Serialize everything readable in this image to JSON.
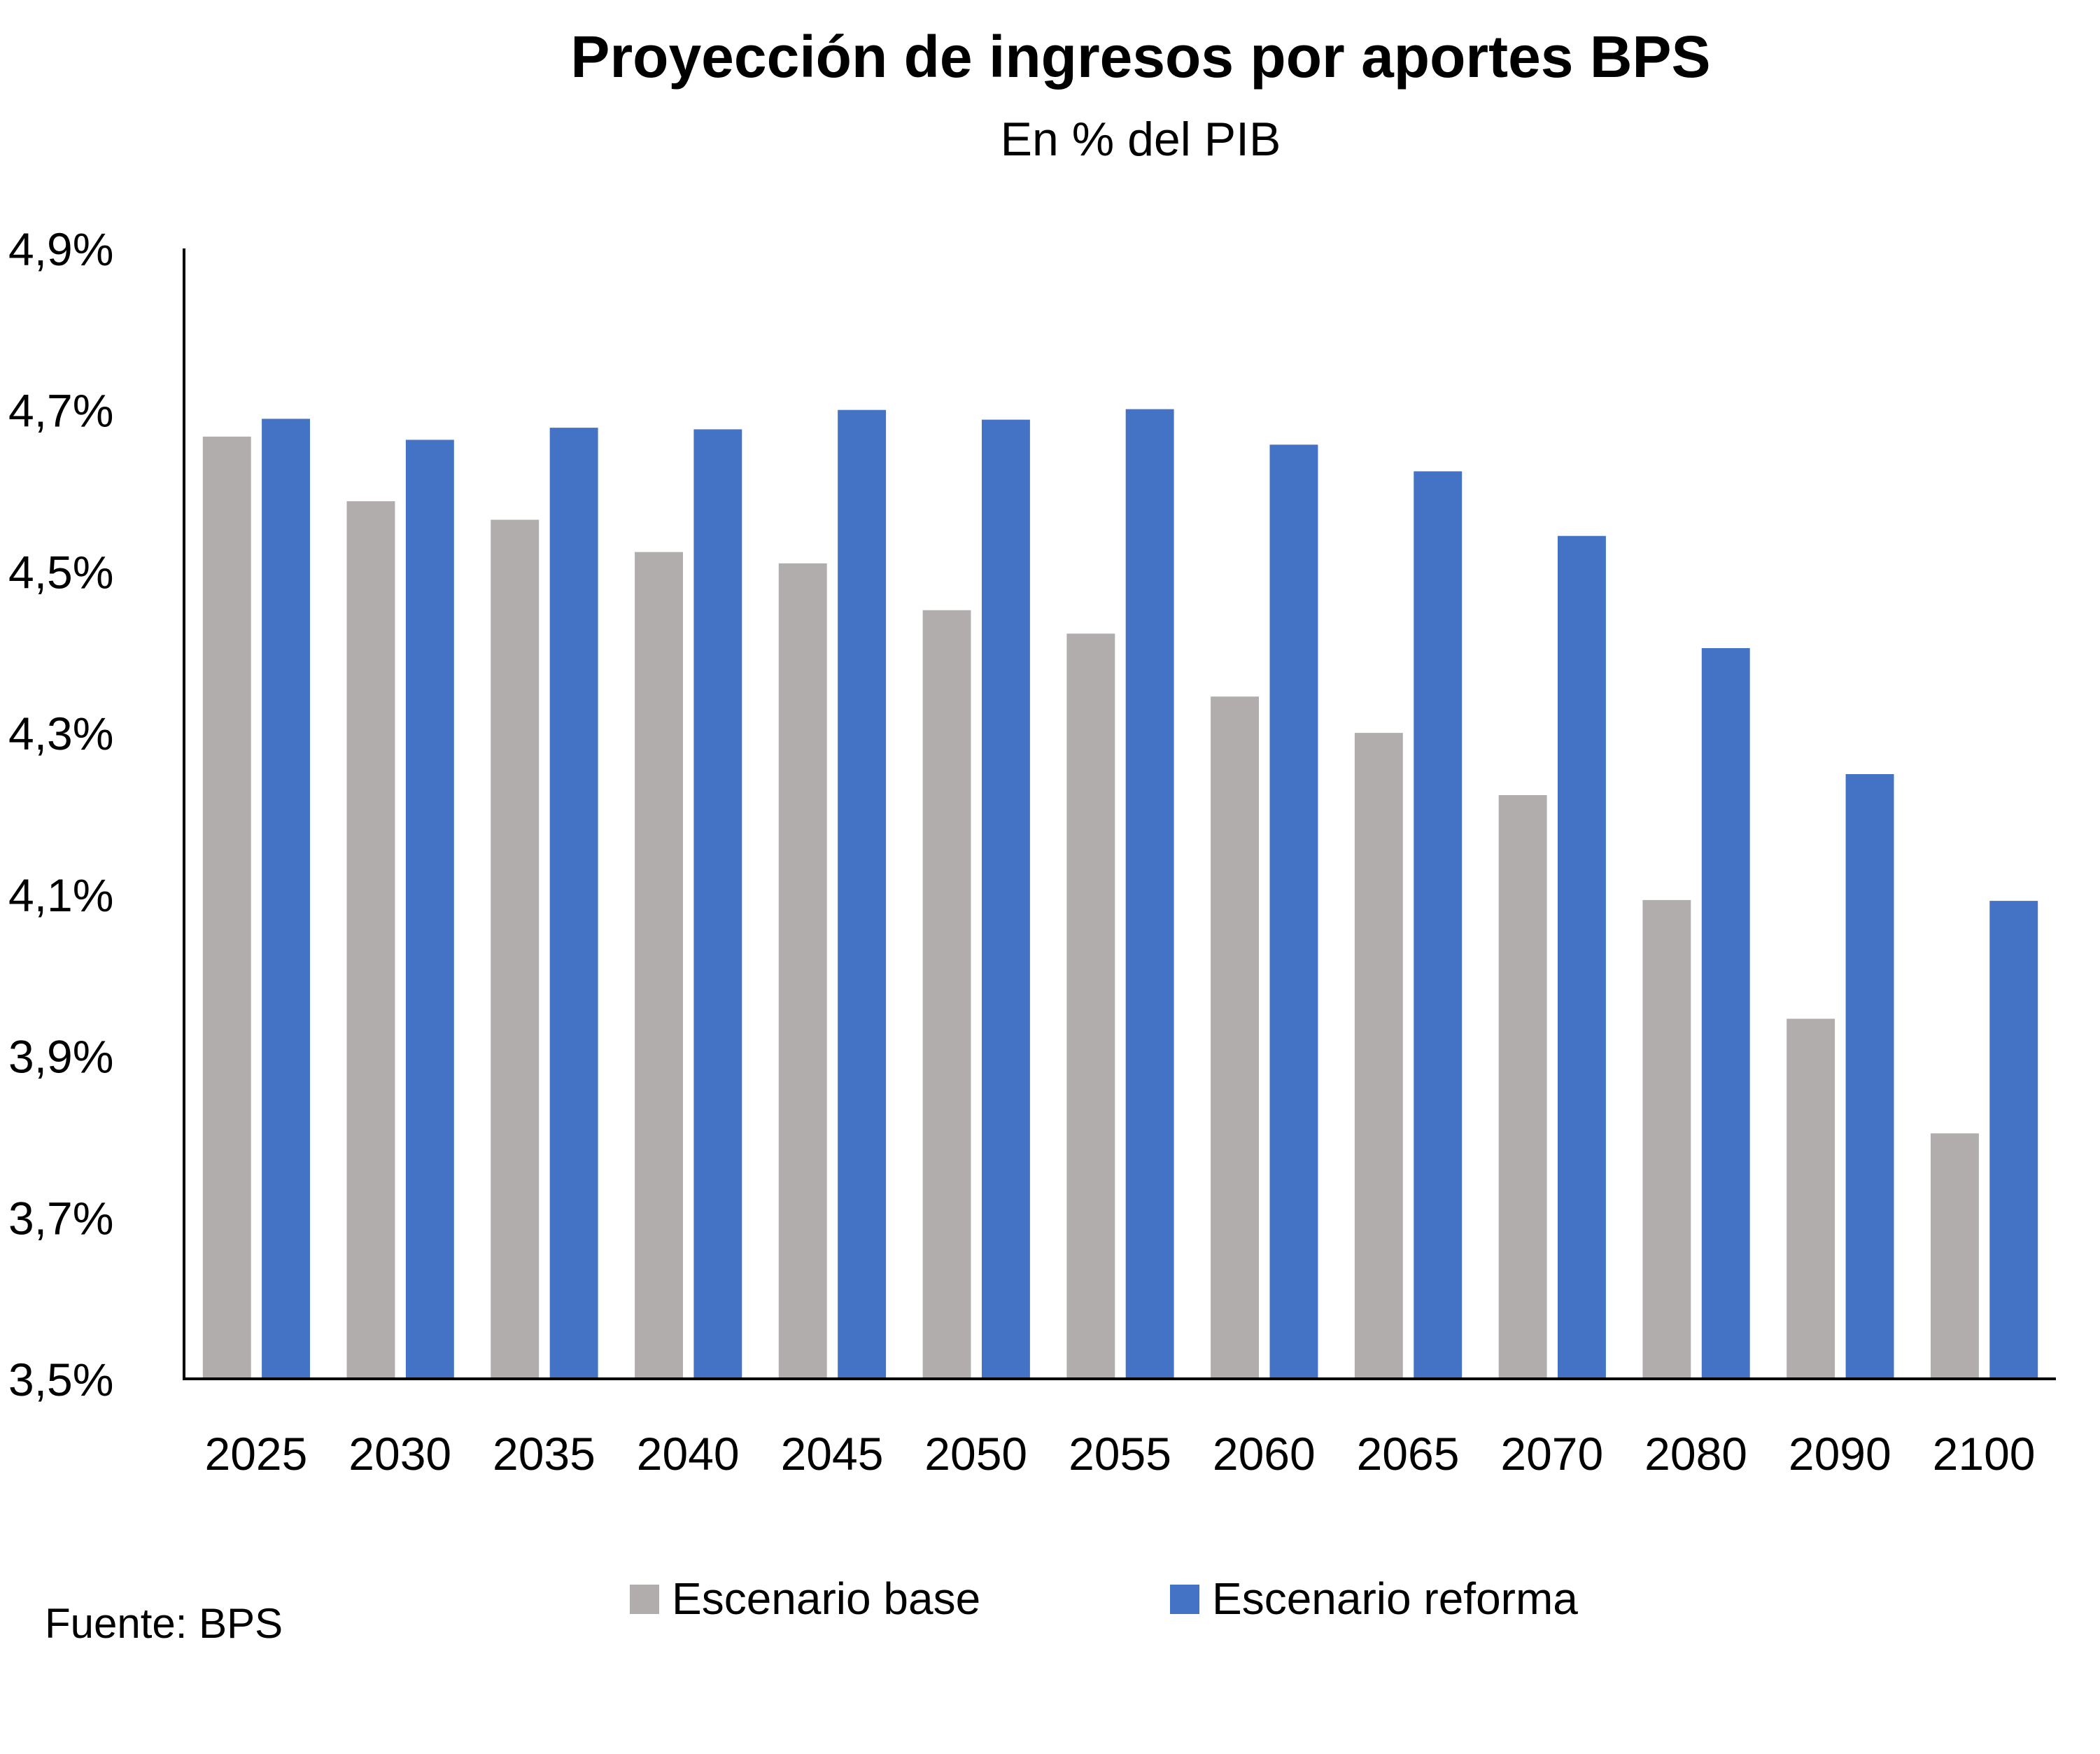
{
  "chart_data": {
    "type": "bar",
    "title": "Proyección de ingresos por aportes BPS",
    "subtitle": "En % del PIB",
    "xlabel": "",
    "ylabel": "",
    "ylim": [
      3.5,
      4.9
    ],
    "yticks": [
      {
        "value": 4.9,
        "label": "4,9%"
      },
      {
        "value": 4.7,
        "label": "4,7%"
      },
      {
        "value": 4.5,
        "label": "4,5%"
      },
      {
        "value": 4.3,
        "label": "4,3%"
      },
      {
        "value": 4.1,
        "label": "4,1%"
      },
      {
        "value": 3.9,
        "label": "3,9%"
      },
      {
        "value": 3.7,
        "label": "3,7%"
      },
      {
        "value": 3.5,
        "label": "3,5%"
      }
    ],
    "categories": [
      "2025",
      "2030",
      "2035",
      "2040",
      "2045",
      "2050",
      "2055",
      "2060",
      "2065",
      "2070",
      "2080",
      "2090",
      "2100"
    ],
    "series": [
      {
        "name": "Escenario base",
        "color": "#B0ADAC",
        "values": [
          4.667,
          4.587,
          4.564,
          4.524,
          4.51,
          4.452,
          4.423,
          4.345,
          4.3,
          4.223,
          4.093,
          3.946,
          3.804
        ]
      },
      {
        "name": "Escenario reforma",
        "color": "#4472C4",
        "values": [
          4.689,
          4.663,
          4.678,
          4.676,
          4.7,
          4.688,
          4.701,
          4.657,
          4.624,
          4.544,
          4.405,
          4.249,
          4.092
        ]
      }
    ],
    "grid": false,
    "legend_position": "bottom",
    "source": "Fuente: BPS"
  }
}
